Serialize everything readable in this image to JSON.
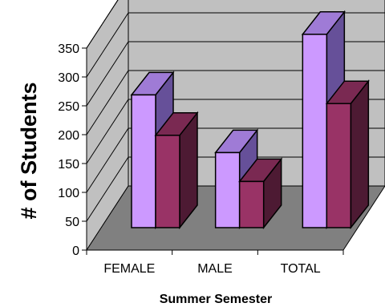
{
  "chart_data": {
    "type": "bar",
    "style": "3d-clustered-column",
    "categories": [
      "FEMALE",
      "MALE",
      "TOTAL"
    ],
    "series": [
      {
        "values": [
          230,
          130,
          335
        ],
        "color": "#CC99FF",
        "side_color": "#665099",
        "top_color": "#9F7BD6"
      },
      {
        "values": [
          160,
          80,
          215
        ],
        "color": "#993366",
        "side_color": "#4D1A33",
        "top_color": "#7A2952"
      }
    ],
    "ylim": [
      0,
      350
    ],
    "yticks": [
      "0",
      "50",
      "100",
      "150",
      "200",
      "250",
      "300",
      "350"
    ],
    "xlabel": "Summer Semester",
    "ylabel": "# of Students",
    "grid": true,
    "wall_color": "#C0C0C0",
    "floor_color": "#808080",
    "legend": "none"
  }
}
